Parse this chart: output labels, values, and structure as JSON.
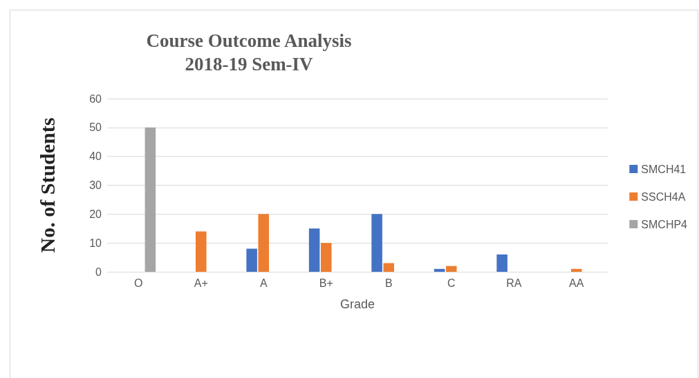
{
  "chart_data": {
    "type": "bar",
    "title": "Course Outcome Analysis\n2018-19 Sem-IV",
    "xlabel": "Grade",
    "ylabel": "No. of Students",
    "categories": [
      "O",
      "A+",
      "A",
      "B+",
      "B",
      "C",
      "RA",
      "AA"
    ],
    "series": [
      {
        "name": "SMCH41",
        "color": "#4472c4",
        "values": [
          0,
          0,
          8,
          15,
          20,
          1,
          6,
          0
        ]
      },
      {
        "name": "SSCH4A",
        "color": "#ed7d31",
        "values": [
          0,
          14,
          20,
          10,
          3,
          2,
          0,
          1
        ]
      },
      {
        "name": "SMCHP4",
        "color": "#a5a5a5",
        "values": [
          50,
          0,
          0,
          0,
          0,
          0,
          0,
          0
        ]
      }
    ],
    "ylim": [
      0,
      60
    ],
    "yticks": [
      0,
      10,
      20,
      30,
      40,
      50,
      60
    ],
    "grid": "y",
    "legend": "right"
  }
}
